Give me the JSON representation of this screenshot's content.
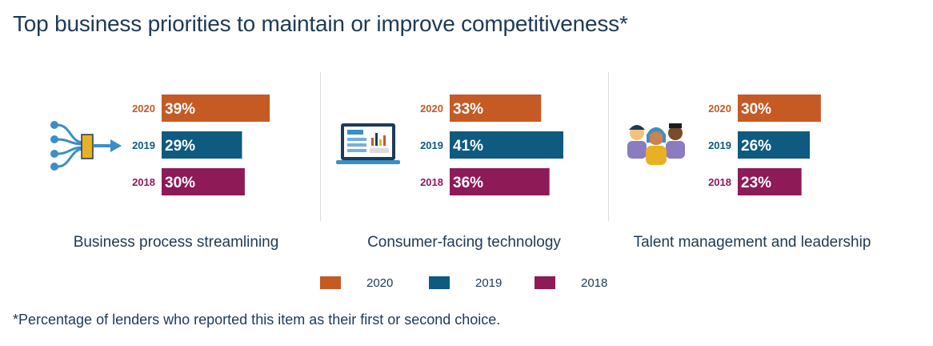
{
  "title": "Top business priorities to maintain or improve competitiveness*",
  "footnote": "*Percentage of lenders who reported this item as their first or second choice.",
  "colors": {
    "2020": "#c55a24",
    "2019": "#0f5a80",
    "2018": "#8e1a58"
  },
  "icons": [
    "process-flow-icon",
    "laptop-dashboard-icon",
    "people-group-icon"
  ],
  "chart_data": {
    "type": "bar",
    "orientation": "horizontal",
    "panels": [
      {
        "caption": "Business process streamlining",
        "series": [
          {
            "name": "2020",
            "value": 39,
            "label": "39%"
          },
          {
            "name": "2019",
            "value": 29,
            "label": "29%"
          },
          {
            "name": "2018",
            "value": 30,
            "label": "30%"
          }
        ]
      },
      {
        "caption": "Consumer-facing technology",
        "series": [
          {
            "name": "2020",
            "value": 33,
            "label": "33%"
          },
          {
            "name": "2019",
            "value": 41,
            "label": "41%"
          },
          {
            "name": "2018",
            "value": 36,
            "label": "36%"
          }
        ]
      },
      {
        "caption": "Talent management and leadership",
        "series": [
          {
            "name": "2020",
            "value": 30,
            "label": "30%"
          },
          {
            "name": "2019",
            "value": 26,
            "label": "26%"
          },
          {
            "name": "2018",
            "value": 23,
            "label": "23%"
          }
        ]
      }
    ],
    "legend": [
      {
        "name": "2020"
      },
      {
        "name": "2019"
      },
      {
        "name": "2018"
      }
    ],
    "legend_position": "bottom",
    "grid": false
  }
}
